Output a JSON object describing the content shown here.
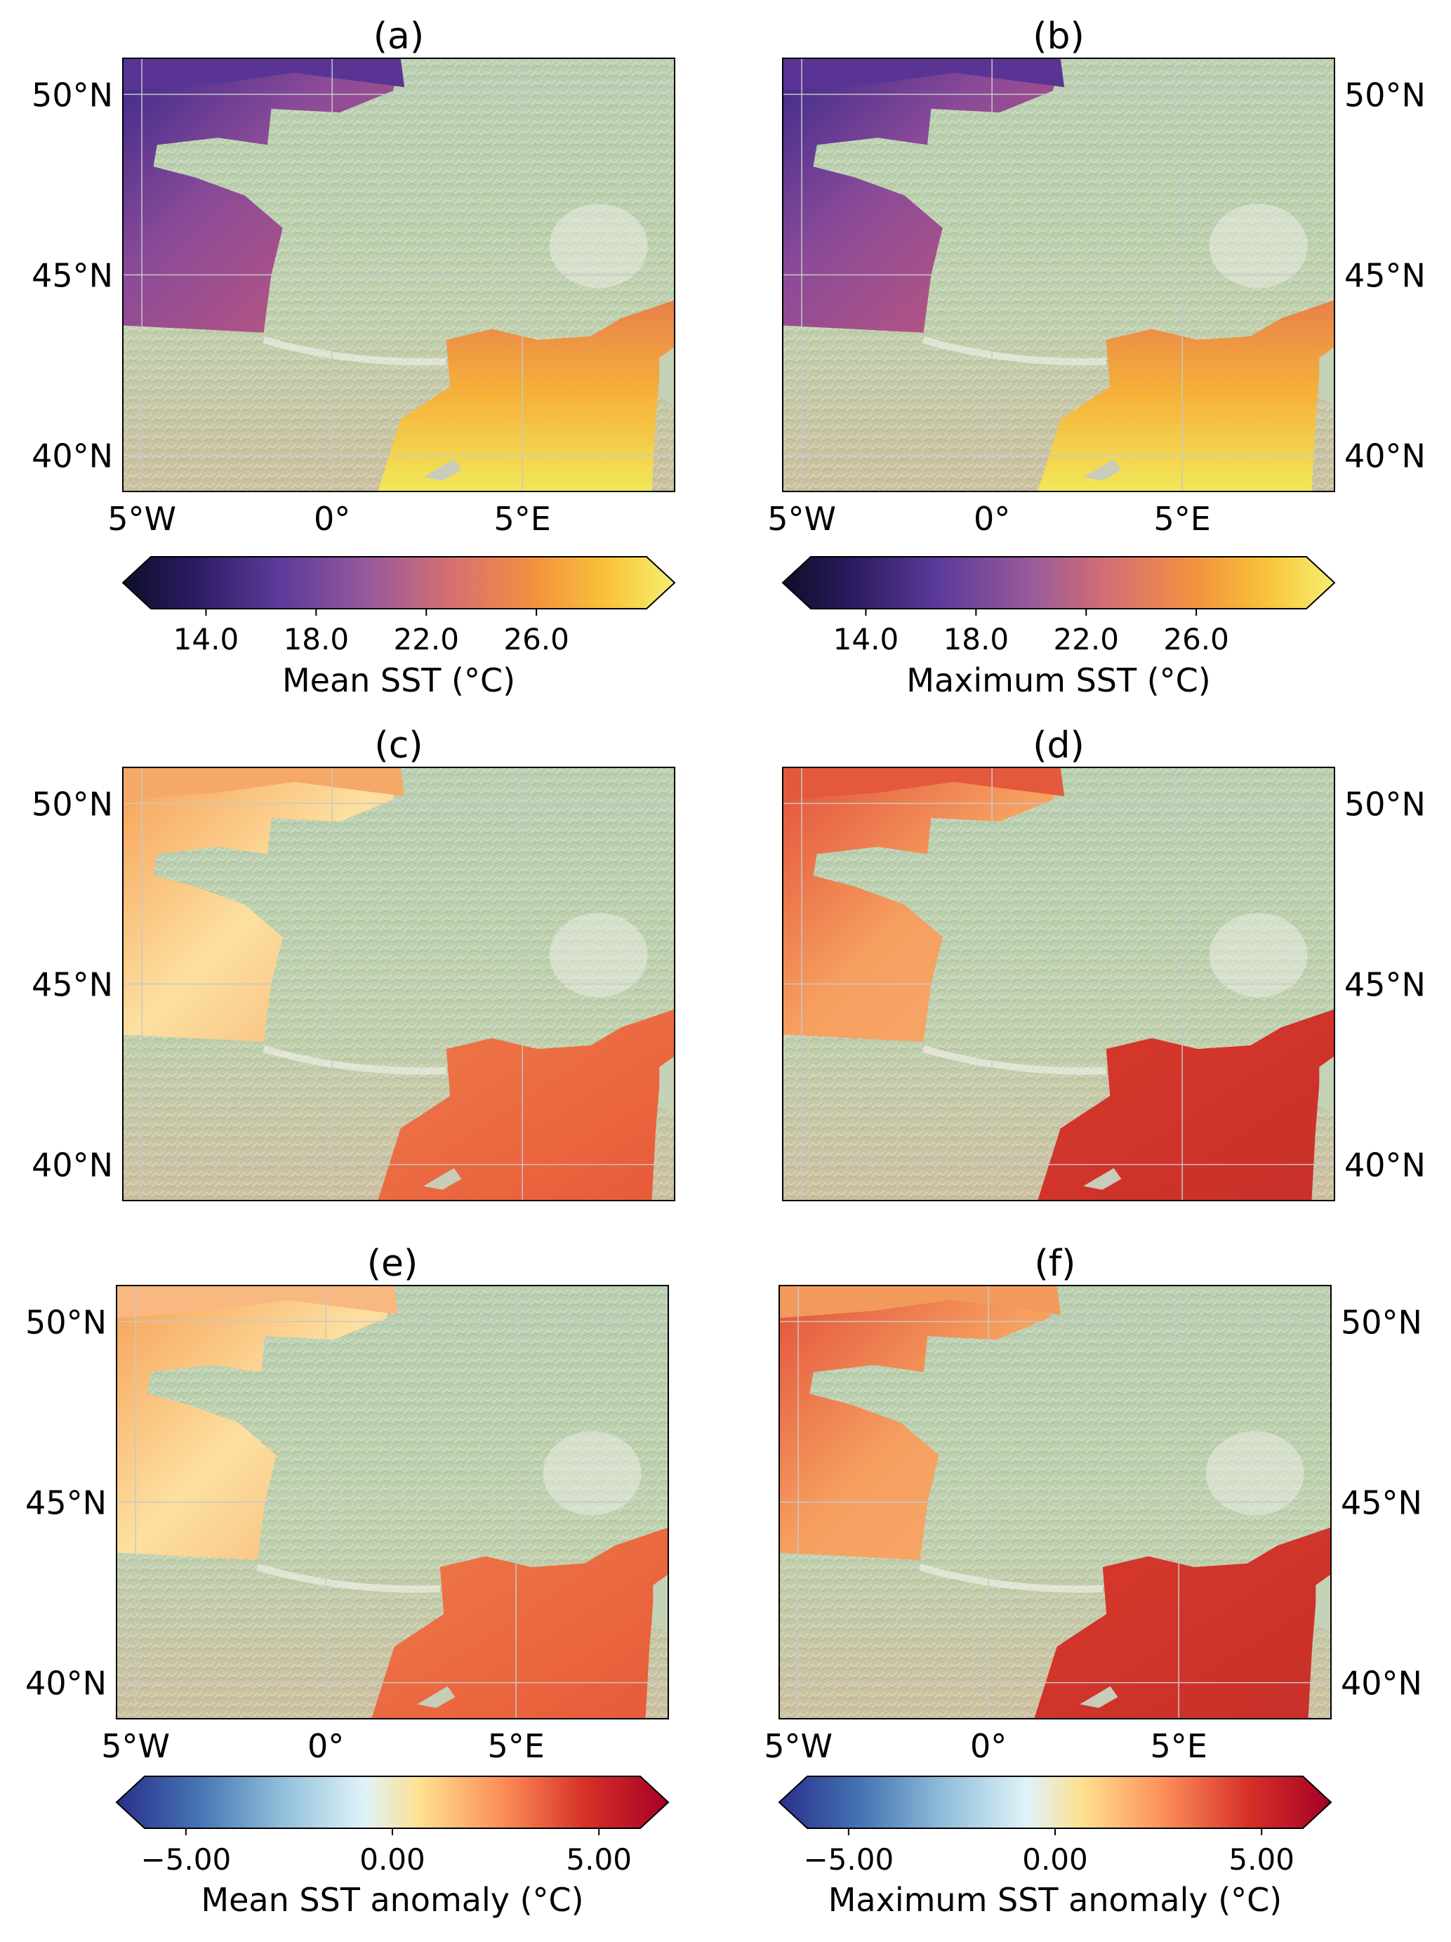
{
  "panels": [
    {
      "id": "a",
      "title": "(a)",
      "lat_side": "left",
      "show_lon": true,
      "field": "mean"
    },
    {
      "id": "b",
      "title": "(b)",
      "lat_side": "right",
      "show_lon": true,
      "field": "max"
    },
    {
      "id": "c",
      "title": "(c)",
      "lat_side": "left",
      "show_lon": false,
      "field": "anom_mean"
    },
    {
      "id": "d",
      "title": "(d)",
      "lat_side": "right",
      "show_lon": false,
      "field": "anom_max"
    },
    {
      "id": "e",
      "title": "(e)",
      "lat_side": "left",
      "show_lon": true,
      "field": "anom_mean2"
    },
    {
      "id": "f",
      "title": "(f)",
      "lat_side": "right",
      "show_lon": true,
      "field": "anom_max2"
    }
  ],
  "map_extent": {
    "lon": [
      -5.5,
      9
    ],
    "lat": [
      39,
      51
    ]
  },
  "lat_ticks": [
    {
      "value": 50,
      "label": "50°N"
    },
    {
      "value": 45,
      "label": "45°N"
    },
    {
      "value": 40,
      "label": "40°N"
    }
  ],
  "lon_ticks": [
    {
      "value": -5,
      "label": "5°W"
    },
    {
      "value": 0,
      "label": "0°"
    },
    {
      "value": 5,
      "label": "5°E"
    }
  ],
  "colorbars": [
    {
      "id": "cb-a",
      "label": "Mean SST (°C)",
      "cmap": "plasma",
      "range": [
        12,
        30
      ],
      "ticks": [
        "14.0",
        "18.0",
        "22.0",
        "26.0"
      ],
      "tick_values": [
        14,
        18,
        22,
        26
      ]
    },
    {
      "id": "cb-b",
      "label": "Maximum SST (°C)",
      "cmap": "plasma",
      "range": [
        12,
        30
      ],
      "ticks": [
        "14.0",
        "18.0",
        "22.0",
        "26.0"
      ],
      "tick_values": [
        14,
        18,
        22,
        26
      ]
    },
    {
      "id": "cb-e",
      "label": "Mean SST anomaly (°C)",
      "cmap": "rdylbu_r",
      "range": [
        -6,
        6
      ],
      "ticks": [
        "−5.00",
        "0.00",
        "5.00"
      ],
      "tick_values": [
        -5,
        0,
        5
      ]
    },
    {
      "id": "cb-f",
      "label": "Maximum SST anomaly (°C)",
      "cmap": "rdylbu_r",
      "range": [
        -6,
        6
      ],
      "ticks": [
        "−5.00",
        "0.00",
        "5.00"
      ],
      "tick_values": [
        -5,
        0,
        5
      ]
    }
  ],
  "colors": {
    "land": "#b9cfb0",
    "land_south": "#cbbfa0",
    "relief": "#e8ede4",
    "grid": "#c8c8c8",
    "sst_atlantic_mean": "#8a4a98",
    "sst_channel_mean": "#6a3a9a",
    "sst_med_mean": "#f6b83a",
    "anom_atlantic": "#fbd99a",
    "anom_med": "#ee7a4a",
    "anom_med_max": "#d8382a"
  }
}
